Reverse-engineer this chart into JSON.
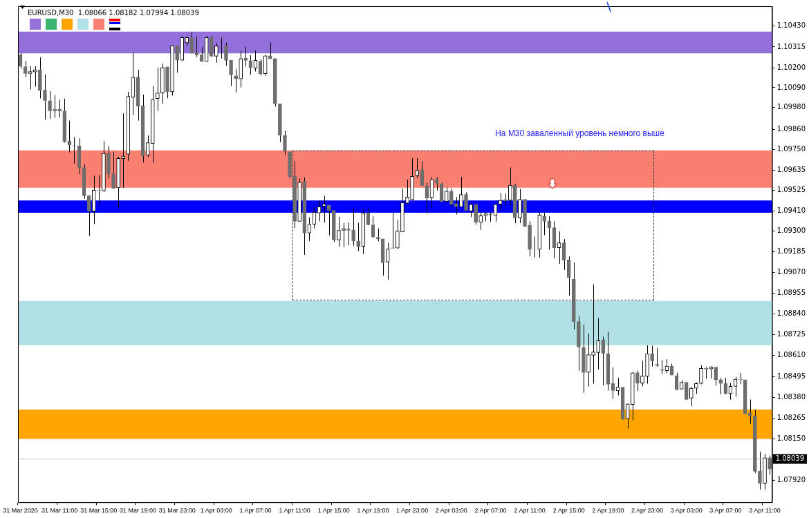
{
  "chart_data": {
    "type": "candlestick",
    "title": "EURUSD,M30  1.08066 1.08182 1.07994 1.08039",
    "categories": [
      "31 Mar 2020",
      null,
      null,
      null,
      null,
      null,
      null,
      null,
      "31 Mar 11:00",
      null,
      null,
      null,
      null,
      null,
      null,
      null,
      "31 Mar 15:00",
      null,
      null,
      null,
      null,
      null,
      null,
      null,
      "31 Mar 19:00",
      null,
      null,
      null,
      null,
      null,
      null,
      null,
      "31 Mar 23:00",
      null,
      null,
      null,
      null,
      null,
      null,
      null,
      "1 Apr 03:00",
      null,
      null,
      null,
      null,
      null,
      null,
      null,
      "1 Apr 07:00",
      null,
      null,
      null,
      null,
      null,
      null,
      null,
      "1 Apr 11:00",
      null,
      null,
      null,
      null,
      null,
      null,
      null,
      "1 Apr 15:00",
      null,
      null,
      null,
      null,
      null,
      null,
      null,
      "1 Apr 19:00",
      null,
      null,
      null,
      null,
      null,
      null,
      null,
      "1 Apr 23:00",
      null,
      null,
      null,
      null,
      null,
      null,
      null,
      "2 Apr 03:00",
      null,
      null,
      null,
      null,
      null,
      null,
      null,
      "2 Apr 07:00",
      null,
      null,
      null,
      null,
      null,
      null,
      null,
      "2 Apr 11:00",
      null,
      null,
      null,
      null,
      null,
      null,
      null,
      "2 Apr 15:00",
      null,
      null,
      null,
      null,
      null,
      null,
      null,
      "2 Apr 19:00",
      null,
      null,
      null,
      null,
      null,
      null,
      null,
      "2 Apr 23:00",
      null,
      null,
      null,
      null,
      null,
      null,
      null,
      "3 Apr 03:00",
      null,
      null,
      null,
      null,
      null,
      null,
      null,
      "3 Apr 07:00",
      null,
      null,
      null,
      null,
      null,
      null,
      null,
      "3 Apr 11:00",
      null
    ],
    "ohlc": [
      [
        1.10273,
        1.10283,
        1.10196,
        1.10208
      ],
      [
        1.10206,
        1.10237,
        1.10148,
        1.10168
      ],
      [
        1.10168,
        1.10208,
        1.10081,
        1.10179
      ],
      [
        1.10177,
        1.10208,
        1.10096,
        1.10189
      ],
      [
        1.10189,
        1.10258,
        1.10031,
        1.10074
      ],
      [
        1.10077,
        1.10163,
        1.09914,
        1.1002
      ],
      [
        1.10018,
        1.10071,
        1.09918,
        1.09962
      ],
      [
        1.0997,
        1.10049,
        1.09924,
        1.09962
      ],
      [
        1.0997,
        1.10024,
        1.09924,
        1.09961
      ],
      [
        1.09962,
        1.10029,
        1.09787,
        1.09793
      ],
      [
        1.09796,
        1.09908,
        1.09733,
        1.09774
      ],
      [
        1.0977,
        1.09817,
        1.09671,
        1.09769
      ],
      [
        1.09768,
        1.0981,
        1.09612,
        1.09648
      ],
      [
        1.09648,
        1.09668,
        1.09477,
        1.09493
      ],
      [
        1.09493,
        1.09493,
        1.09271,
        1.09408
      ],
      [
        1.09408,
        1.09604,
        1.09337,
        1.09524
      ],
      [
        1.09522,
        1.09607,
        1.09446,
        1.09524
      ],
      [
        1.09521,
        1.09796,
        1.09514,
        1.09727
      ],
      [
        1.09727,
        1.09768,
        1.09589,
        1.09613
      ],
      [
        1.09613,
        1.09737,
        1.09533,
        1.09533
      ],
      [
        1.09537,
        1.09708,
        1.09427,
        1.09699
      ],
      [
        1.09698,
        1.09949,
        1.09537,
        1.09712
      ],
      [
        1.09723,
        1.10067,
        1.09686,
        1.10042
      ],
      [
        1.10038,
        1.10283,
        1.09938,
        1.10148
      ],
      [
        1.10148,
        1.10189,
        1.09908,
        1.09987
      ],
      [
        1.09989,
        1.10052,
        1.09677,
        1.09714
      ],
      [
        1.09718,
        1.09827,
        1.09706,
        1.09786
      ],
      [
        1.09782,
        1.10099,
        1.09676,
        1.10026
      ],
      [
        1.1003,
        1.10201,
        1.09961,
        1.10061
      ],
      [
        1.10061,
        1.10223,
        1.10001,
        1.10201
      ],
      [
        1.10205,
        1.10205,
        1.10032,
        1.10067
      ],
      [
        1.10067,
        1.10326,
        1.10047,
        1.10323
      ],
      [
        1.10321,
        1.10321,
        1.10173,
        1.10242
      ],
      [
        1.10242,
        1.10373,
        1.10238,
        1.10367
      ],
      [
        1.10338,
        1.10373,
        1.1032,
        1.10367
      ],
      [
        1.10367,
        1.10395,
        1.1028,
        1.1028
      ],
      [
        1.10285,
        1.10373,
        1.1026,
        1.1027
      ],
      [
        1.10272,
        1.10314,
        1.10232,
        1.10235
      ],
      [
        1.10235,
        1.10376,
        1.10233,
        1.10367
      ],
      [
        1.10367,
        1.10376,
        1.10261,
        1.10264
      ],
      [
        1.10264,
        1.10336,
        1.10228,
        1.1032
      ],
      [
        1.10322,
        1.10367,
        1.10251,
        1.10321
      ],
      [
        1.10322,
        1.10338,
        1.10211,
        1.10241
      ],
      [
        1.10241,
        1.10241,
        1.10099,
        1.10161
      ],
      [
        1.10155,
        1.10192,
        1.10064,
        1.10139
      ],
      [
        1.10139,
        1.10292,
        1.10091,
        1.10251
      ],
      [
        1.10253,
        1.10317,
        1.10207,
        1.10241
      ],
      [
        1.10238,
        1.1027,
        1.10161,
        1.10201
      ],
      [
        1.10198,
        1.10295,
        1.1018,
        1.10241
      ],
      [
        1.10236,
        1.10245,
        1.10157,
        1.10167
      ],
      [
        1.10167,
        1.1027,
        1.10157,
        1.10266
      ],
      [
        1.10266,
        1.10341,
        1.10248,
        1.10249
      ],
      [
        1.10251,
        1.10251,
        1.09986,
        1.10001
      ],
      [
        1.10001,
        1.10001,
        1.09789,
        1.09827
      ],
      [
        1.09827,
        1.09853,
        1.09717,
        1.09739
      ],
      [
        1.09737,
        1.09737,
        1.09589,
        1.09599
      ],
      [
        1.09602,
        1.09683,
        1.09314,
        1.09352
      ],
      [
        1.09352,
        1.09589,
        1.09349,
        1.09568
      ],
      [
        1.09573,
        1.09595,
        1.09167,
        1.09287
      ],
      [
        1.09287,
        1.09373,
        1.09243,
        1.09335
      ],
      [
        1.09335,
        1.09424,
        1.09312,
        1.09402
      ],
      [
        1.09398,
        1.09467,
        1.09352,
        1.09432
      ],
      [
        1.09435,
        1.09493,
        1.09345,
        1.09447
      ],
      [
        1.09442,
        1.09442,
        1.09274,
        1.09412
      ],
      [
        1.09412,
        1.09412,
        1.09237,
        1.09249
      ],
      [
        1.09249,
        1.09377,
        1.09212,
        1.09302
      ],
      [
        1.09302,
        1.09343,
        1.09208,
        1.0931
      ],
      [
        1.09309,
        1.09345,
        1.0922,
        1.09302
      ],
      [
        1.09305,
        1.09423,
        1.09218,
        1.09243
      ],
      [
        1.09242,
        1.09343,
        1.09187,
        1.09212
      ],
      [
        1.09214,
        1.0942,
        1.0917,
        1.09398
      ],
      [
        1.09398,
        1.09424,
        1.0933,
        1.09333
      ],
      [
        1.09332,
        1.09379,
        1.09263,
        1.09264
      ],
      [
        1.09264,
        1.09312,
        1.09241,
        1.09255
      ],
      [
        1.09255,
        1.09255,
        1.09052,
        1.09123
      ],
      [
        1.09127,
        1.09233,
        1.0903,
        1.09199
      ],
      [
        1.09203,
        1.09402,
        1.09199,
        1.09205
      ],
      [
        1.09204,
        1.0936,
        1.09199,
        1.09298
      ],
      [
        1.09293,
        1.09533,
        1.09293,
        1.09455
      ],
      [
        1.09452,
        1.09583,
        1.09448,
        1.09486
      ],
      [
        1.09471,
        1.09702,
        1.09468,
        1.096
      ],
      [
        1.09605,
        1.09702,
        1.0959,
        1.09633
      ],
      [
        1.09637,
        1.09683,
        1.09548,
        1.09548
      ],
      [
        1.09548,
        1.09567,
        1.09396,
        1.09481
      ],
      [
        1.09481,
        1.09596,
        1.09425,
        1.09583
      ],
      [
        1.09587,
        1.09596,
        1.09521,
        1.09562
      ],
      [
        1.09558,
        1.09565,
        1.09462,
        1.09462
      ],
      [
        1.09462,
        1.0954,
        1.09462,
        1.09518
      ],
      [
        1.09518,
        1.09533,
        1.09427,
        1.09446
      ],
      [
        1.0945,
        1.09486,
        1.0939,
        1.09433
      ],
      [
        1.09431,
        1.09598,
        1.09431,
        1.095
      ],
      [
        1.095,
        1.09512,
        1.09408,
        1.09412
      ],
      [
        1.09408,
        1.09458,
        1.09375,
        1.09446
      ],
      [
        1.09446,
        1.09452,
        1.09333,
        1.09346
      ],
      [
        1.09346,
        1.09402,
        1.09305,
        1.09383
      ],
      [
        1.09383,
        1.09402,
        1.09352,
        1.09393
      ],
      [
        1.09393,
        1.09402,
        1.0935,
        1.09387
      ],
      [
        1.09383,
        1.09458,
        1.0935,
        1.09446
      ],
      [
        1.09446,
        1.09507,
        1.09412,
        1.09468
      ],
      [
        1.09471,
        1.09505,
        1.0944,
        1.09465
      ],
      [
        1.09467,
        1.0965,
        1.0944,
        1.09552
      ],
      [
        1.09552,
        1.09558,
        1.09342,
        1.09371
      ],
      [
        1.09371,
        1.09531,
        1.09342,
        1.09473
      ],
      [
        1.09473,
        1.09473,
        1.09321,
        1.09323
      ],
      [
        1.0933,
        1.09352,
        1.09158,
        1.09196
      ],
      [
        1.09196,
        1.09267,
        1.09152,
        1.09196
      ],
      [
        1.09196,
        1.09402,
        1.09152,
        1.09387
      ],
      [
        1.0938,
        1.09402,
        1.09275,
        1.09352
      ],
      [
        1.09352,
        1.0938,
        1.09196,
        1.09317
      ],
      [
        1.09317,
        1.09352,
        1.09148,
        1.09205
      ],
      [
        1.09206,
        1.09296,
        1.09117,
        1.09233
      ],
      [
        1.09233,
        1.09254,
        1.09083,
        1.09137
      ],
      [
        1.0914,
        1.09158,
        1.08942,
        1.09042
      ],
      [
        1.09033,
        1.09125,
        1.08755,
        1.08798
      ],
      [
        1.08798,
        1.08827,
        1.08527,
        1.08658
      ],
      [
        1.08655,
        1.0878,
        1.08405,
        1.08517
      ],
      [
        1.08517,
        1.08733,
        1.0844,
        1.08615
      ],
      [
        1.08612,
        1.09004,
        1.08455,
        1.0863
      ],
      [
        1.08627,
        1.08817,
        1.08533,
        1.08692
      ],
      [
        1.08696,
        1.08715,
        1.08446,
        1.08621
      ],
      [
        1.08621,
        1.08742,
        1.08417,
        1.08452
      ],
      [
        1.08456,
        1.08546,
        1.08371,
        1.08417
      ],
      [
        1.08415,
        1.08487,
        1.0839,
        1.08436
      ],
      [
        1.08436,
        1.08436,
        1.08257,
        1.08258
      ],
      [
        1.08262,
        1.08346,
        1.08208,
        1.08343
      ],
      [
        1.0834,
        1.08521,
        1.08252,
        1.08515
      ],
      [
        1.08515,
        1.08527,
        1.08415,
        1.08458
      ],
      [
        1.08458,
        1.08581,
        1.0844,
        1.08498
      ],
      [
        1.08496,
        1.08667,
        1.08455,
        1.08621
      ],
      [
        1.08621,
        1.08665,
        1.0855,
        1.08581
      ],
      [
        1.08562,
        1.08652,
        1.0855,
        1.08555
      ],
      [
        1.08533,
        1.08587,
        1.08508,
        1.08529
      ],
      [
        1.08527,
        1.0859,
        1.08512,
        1.08552
      ],
      [
        1.08552,
        1.08565,
        1.08502,
        1.08502
      ],
      [
        1.085,
        1.08515,
        1.08421,
        1.08421
      ],
      [
        1.08425,
        1.08475,
        1.08425,
        1.08462
      ],
      [
        1.08462,
        1.08465,
        1.08365,
        1.08368
      ],
      [
        1.08375,
        1.08437,
        1.08331,
        1.0843
      ],
      [
        1.0843,
        1.08462,
        1.08398,
        1.08456
      ],
      [
        1.08456,
        1.08556,
        1.08452,
        1.0854
      ],
      [
        1.08536,
        1.08546,
        1.08481,
        1.0854
      ],
      [
        1.08536,
        1.08552,
        1.08483,
        1.08546
      ],
      [
        1.08546,
        1.08546,
        1.08443,
        1.08477
      ],
      [
        1.08477,
        1.08487,
        1.08396,
        1.08456
      ],
      [
        1.08456,
        1.08487,
        1.08396,
        1.084
      ],
      [
        1.084,
        1.08458,
        1.08367,
        1.0844
      ],
      [
        1.0844,
        1.08492,
        1.08383,
        1.0848
      ],
      [
        1.08477,
        1.08515,
        1.08452,
        1.0848
      ],
      [
        1.08477,
        1.08477,
        1.08287,
        1.0829
      ],
      [
        1.08293,
        1.08367,
        1.08233,
        1.08277
      ],
      [
        1.08277,
        1.08312,
        1.07962,
        1.07971
      ],
      [
        1.07973,
        1.0808,
        1.07871,
        1.07905
      ],
      [
        1.07905,
        1.08067,
        1.07871,
        1.08046
      ],
      [
        1.08046,
        1.08058,
        1.07952,
        1.07983
      ]
    ],
    "colors": [
      "#6e6e6e",
      "#6e6e6e",
      "#000000",
      "#000000",
      "#6e6e6e",
      "#6e6e6e",
      "#6e6e6e",
      "#6e6e6e",
      "#6e6e6e",
      "#6e6e6e",
      "#6e6e6e",
      "#6e6e6e",
      "#6e6e6e",
      "#6e6e6e",
      "#6e6e6e",
      "#000000",
      "#000000",
      "#000000",
      "#6e6e6e",
      "#6e6e6e",
      "#000000",
      "#000000",
      "#000000",
      "#000000",
      "#6e6e6e",
      "#6e6e6e",
      "#000000",
      "#000000",
      "#000000",
      "#000000",
      "#6e6e6e",
      "#000000",
      "#6e6e6e",
      "#000000",
      "#000000",
      "#6e6e6e",
      "#6e6e6e",
      "#6e6e6e",
      "#000000",
      "#6e6e6e",
      "#000000",
      "#6e6e6e",
      "#6e6e6e",
      "#6e6e6e",
      "#6e6e6e",
      "#000000",
      "#6e6e6e",
      "#6e6e6e",
      "#000000",
      "#6e6e6e",
      "#000000",
      "#6e6e6e",
      "#6e6e6e",
      "#6e6e6e",
      "#6e6e6e",
      "#6e6e6e",
      "#6e6e6e",
      "#000000",
      "#6e6e6e",
      "#000000",
      "#000000",
      "#000000",
      "#000000",
      "#6e6e6e",
      "#6e6e6e",
      "#000000",
      "#000000",
      "#6e6e6e",
      "#6e6e6e",
      "#6e6e6e",
      "#000000",
      "#6e6e6e",
      "#6e6e6e",
      "#6e6e6e",
      "#6e6e6e",
      "#000000",
      "#000000",
      "#000000",
      "#000000",
      "#000000",
      "#000000",
      "#000000",
      "#6e6e6e",
      "#6e6e6e",
      "#000000",
      "#6e6e6e",
      "#6e6e6e",
      "#000000",
      "#6e6e6e",
      "#6e6e6e",
      "#000000",
      "#6e6e6e",
      "#000000",
      "#6e6e6e",
      "#000000",
      "#000000",
      "#6e6e6e",
      "#000000",
      "#000000",
      "#6e6e6e",
      "#000000",
      "#6e6e6e",
      "#000000",
      "#6e6e6e",
      "#6e6e6e",
      "#000000",
      "#000000",
      "#6e6e6e",
      "#6e6e6e",
      "#6e6e6e",
      "#000000",
      "#6e6e6e",
      "#6e6e6e",
      "#6e6e6e",
      "#6e6e6e",
      "#6e6e6e",
      "#000000",
      "#000000",
      "#000000",
      "#6e6e6e",
      "#6e6e6e",
      "#6e6e6e",
      "#000000",
      "#6e6e6e",
      "#000000",
      "#000000",
      "#6e6e6e",
      "#000000",
      "#000000",
      "#6e6e6e",
      "#6e6e6e",
      "#6e6e6e",
      "#000000",
      "#6e6e6e",
      "#6e6e6e",
      "#000000",
      "#6e6e6e",
      "#000000",
      "#000000",
      "#000000",
      "#000000",
      "#000000",
      "#6e6e6e",
      "#6e6e6e",
      "#6e6e6e",
      "#000000",
      "#000000",
      "#000000",
      "#6e6e6e",
      "#6e6e6e",
      "#6e6e6e",
      "#6e6e6e",
      "#000000",
      "#6e6e6e"
    ],
    "ylim": [
      1.078,
      1.1054
    ],
    "yticks": [
      {
        "value": 1.1043,
        "label": "1.10430"
      },
      {
        "value": 1.10315,
        "label": "1.10315"
      },
      {
        "value": 1.102,
        "label": "1.10200"
      },
      {
        "value": 1.1009,
        "label": "1.10090"
      },
      {
        "value": 1.0998,
        "label": "1.09980"
      },
      {
        "value": 1.0986,
        "label": "1.09860"
      },
      {
        "value": 1.0975,
        "label": "1.09750"
      },
      {
        "value": 1.09635,
        "label": "1.09635"
      },
      {
        "value": 1.09525,
        "label": "1.09525"
      },
      {
        "value": 1.0941,
        "label": "1.09410"
      },
      {
        "value": 1.093,
        "label": "1.09300"
      },
      {
        "value": 1.09185,
        "label": "1.09185"
      },
      {
        "value": 1.0907,
        "label": "1.09070"
      },
      {
        "value": 1.08955,
        "label": "1.08955"
      },
      {
        "value": 1.0884,
        "label": "1.08840"
      },
      {
        "value": 1.08725,
        "label": "1.08725"
      },
      {
        "value": 1.0861,
        "label": "1.08610"
      },
      {
        "value": 1.08495,
        "label": "1.08495"
      },
      {
        "value": 1.0838,
        "label": "1.08380"
      },
      {
        "value": 1.08265,
        "label": "1.08265"
      },
      {
        "value": 1.0815,
        "label": "1.08150"
      },
      {
        "value": 1.0792,
        "label": "1.07920"
      }
    ],
    "bands": [
      {
        "axis": "y",
        "from": 1.1028,
        "to": 1.104,
        "color": "#9370db"
      },
      {
        "axis": "y",
        "from": 1.09538,
        "to": 1.09744,
        "color": "#fa8072"
      },
      {
        "axis": "y",
        "from": 1.08668,
        "to": 1.08912,
        "color": "#b0e0e6"
      },
      {
        "axis": "y",
        "from": 1.0815,
        "to": 1.08312,
        "color": "#ffa500"
      },
      {
        "axis": "y",
        "from": 1.09399,
        "to": 1.09467,
        "color": "#0000ff"
      }
    ],
    "ref_lines": [
      {
        "axis": "y",
        "value": 1.08039,
        "label": "1.08039",
        "color": "#c0c0c0"
      }
    ],
    "annotations": [
      "На М30 заваленный уровень немного выше"
    ]
  }
}
